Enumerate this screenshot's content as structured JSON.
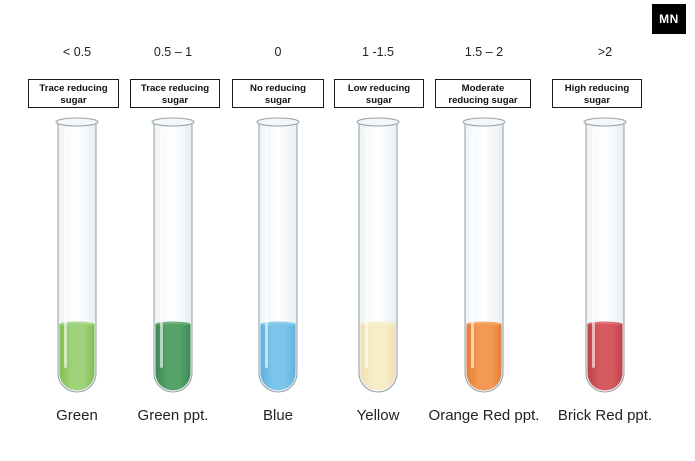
{
  "brand_badge": "MN",
  "tubes": [
    {
      "range": "< 0.5",
      "label_line1": "Trace reducing",
      "label_line2": "sugar",
      "color_name": "Green",
      "liquid": "#9fd27a",
      "liquid_dark": "#7fbf55"
    },
    {
      "range": "0.5 – 1",
      "label_line1": "Trace reducing",
      "label_line2": "sugar",
      "color_name": "Green ppt.",
      "liquid": "#56a36a",
      "liquid_dark": "#3f8a55"
    },
    {
      "range": "0",
      "label_line1": "No reducing",
      "label_line2": "sugar",
      "color_name": "Blue",
      "liquid": "#7cc6ea",
      "liquid_dark": "#5eb2dd"
    },
    {
      "range": "1 -1.5",
      "label_line1": "Low reducing",
      "label_line2": "sugar",
      "color_name": "Yellow",
      "liquid": "#f8edc8",
      "liquid_dark": "#efe0b0"
    },
    {
      "range": "1.5 – 2",
      "label_line1": "Moderate",
      "label_line2": "reducing sugar",
      "color_name": "Orange Red ppt.",
      "liquid": "#f29a55",
      "liquid_dark": "#e47f36"
    },
    {
      "range": ">2",
      "label_line1": "High reducing",
      "label_line2": "sugar",
      "color_name": "Brick Red ppt.",
      "liquid": "#d55a5f",
      "liquid_dark": "#bf4247"
    }
  ]
}
